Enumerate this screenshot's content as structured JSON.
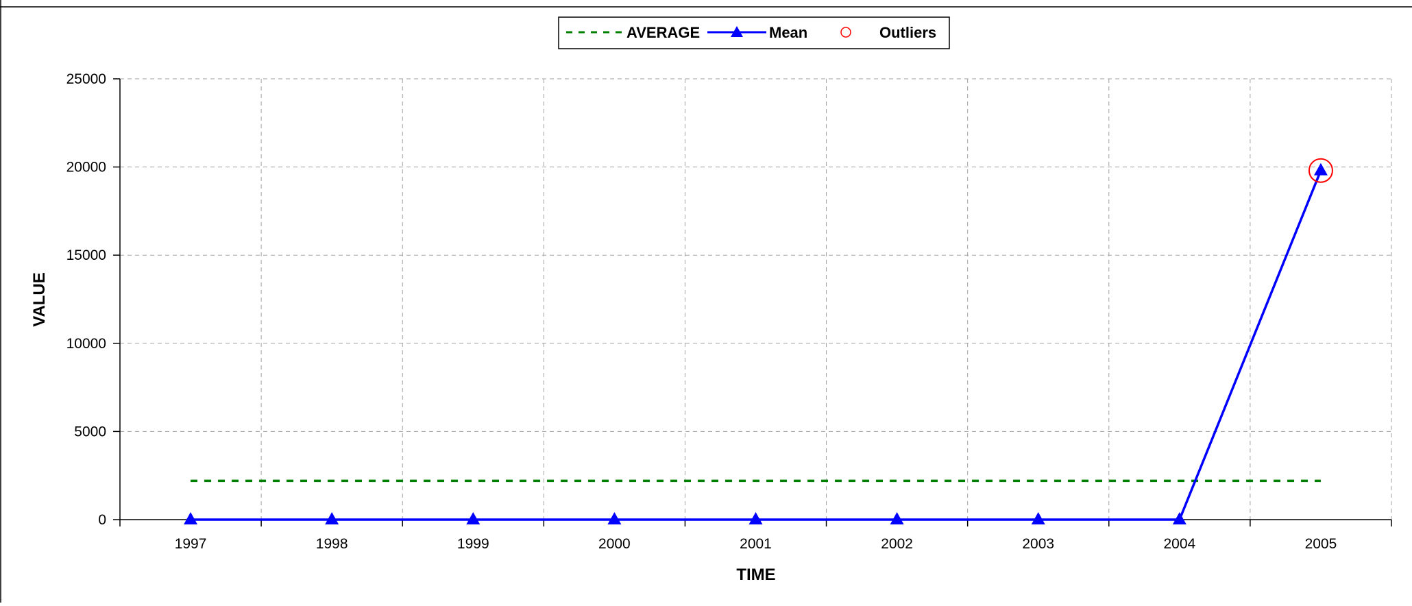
{
  "chart_data": {
    "type": "line",
    "xlabel": "TIME",
    "ylabel": "VALUE",
    "categories": [
      "1997",
      "1998",
      "1999",
      "2000",
      "2001",
      "2002",
      "2003",
      "2004",
      "2005"
    ],
    "ylim": [
      0,
      25000
    ],
    "yticks": [
      0,
      5000,
      10000,
      15000,
      20000,
      25000
    ],
    "ytick_labels": [
      "0",
      "5000",
      "10000",
      "15000",
      "20000",
      "25000"
    ],
    "grid": true,
    "legend_position": "top-center",
    "legend": [
      "AVERAGE",
      "Mean",
      "Outliers"
    ],
    "series": [
      {
        "name": "AVERAGE",
        "style": "dashed",
        "color": "#008000",
        "values": [
          2200,
          2200,
          2200,
          2200,
          2200,
          2200,
          2200,
          2200,
          2200
        ]
      },
      {
        "name": "Mean",
        "style": "line-triangle",
        "color": "#0000ff",
        "values": [
          0,
          0,
          0,
          0,
          0,
          0,
          0,
          0,
          19800
        ]
      },
      {
        "name": "Outliers",
        "style": "circle-marker",
        "color": "#ff0000",
        "points": [
          {
            "x": "2005",
            "y": 19800
          }
        ]
      }
    ]
  }
}
